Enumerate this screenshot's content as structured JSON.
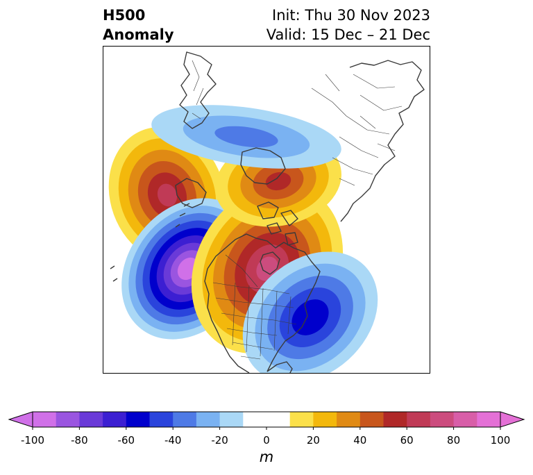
{
  "title": {
    "left_line1": "H500",
    "left_line2": "Anomaly",
    "right_line1": "Init: Thu 30 Nov 2023",
    "right_line2": "Valid: 15 Dec – 21 Dec"
  },
  "colorbar": {
    "unit": "m",
    "tick_labels": [
      "-100",
      "-80",
      "-60",
      "-40",
      "-20",
      "0",
      "20",
      "40",
      "60",
      "80",
      "100"
    ],
    "tick_values": [
      -100,
      -80,
      -60,
      -40,
      -20,
      0,
      20,
      40,
      60,
      80,
      100
    ],
    "min": -100,
    "max": 100,
    "bins": [
      {
        "from": -100,
        "to": -90,
        "color": "#d070e8"
      },
      {
        "from": -90,
        "to": -80,
        "color": "#9a55e0"
      },
      {
        "from": -80,
        "to": -70,
        "color": "#6a3ad8"
      },
      {
        "from": -70,
        "to": -60,
        "color": "#3c1fd2"
      },
      {
        "from": -60,
        "to": -50,
        "color": "#0000cc"
      },
      {
        "from": -50,
        "to": -40,
        "color": "#2a44dc"
      },
      {
        "from": -40,
        "to": -30,
        "color": "#4e7ae6"
      },
      {
        "from": -30,
        "to": -20,
        "color": "#7ab2f2"
      },
      {
        "from": -20,
        "to": -10,
        "color": "#aad8f6"
      },
      {
        "from": -10,
        "to": 10,
        "color": "#ffffff"
      },
      {
        "from": 10,
        "to": 20,
        "color": "#fbe04a"
      },
      {
        "from": 20,
        "to": 30,
        "color": "#f3b80c"
      },
      {
        "from": 30,
        "to": 40,
        "color": "#e08a14"
      },
      {
        "from": 40,
        "to": 50,
        "color": "#c8561c"
      },
      {
        "from": 50,
        "to": 60,
        "color": "#b02828"
      },
      {
        "from": 60,
        "to": 70,
        "color": "#c03a56"
      },
      {
        "from": 70,
        "to": 80,
        "color": "#cc4c7e"
      },
      {
        "from": 80,
        "to": 90,
        "color": "#d85ea8"
      },
      {
        "from": 90,
        "to": 100,
        "color": "#e470d6"
      }
    ],
    "extend_min_color": "#d070e8",
    "extend_max_color": "#e470d6"
  },
  "anomaly_centers": [
    {
      "name": "pacific-ridge",
      "sign": "positive",
      "peak": 65
    },
    {
      "name": "alaska-west-canada-trough",
      "sign": "negative",
      "peak": -100
    },
    {
      "name": "central-canada-ridge",
      "sign": "positive",
      "peak": 75
    },
    {
      "name": "arctic-ridge",
      "sign": "positive",
      "peak": 55
    },
    {
      "name": "atlantic-trough",
      "sign": "negative",
      "peak": -60
    },
    {
      "name": "polar-trough",
      "sign": "negative",
      "peak": -35
    }
  ]
}
